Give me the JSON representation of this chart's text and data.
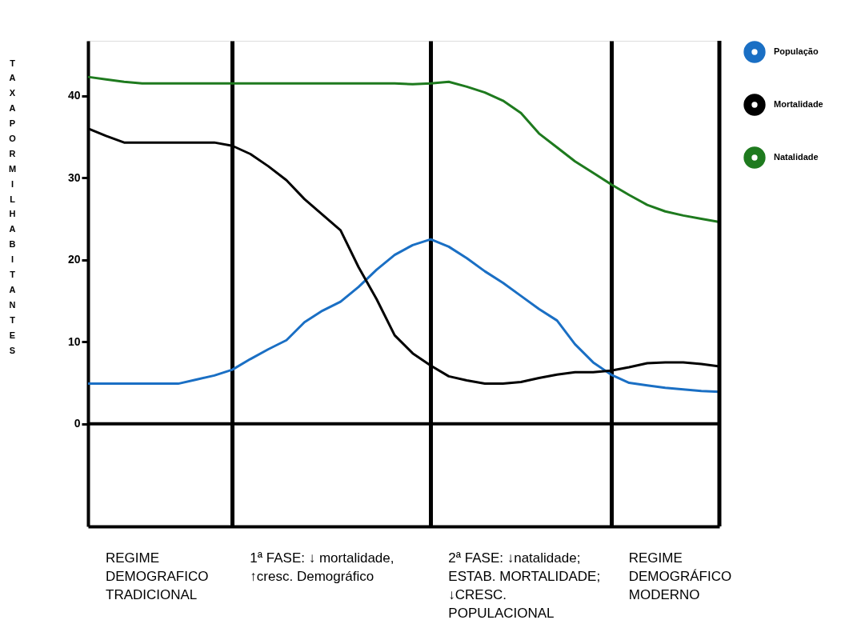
{
  "chart_data": {
    "type": "line",
    "ylabel": "TAXA POR MIL HABITANTES",
    "categories": [
      null,
      null,
      null,
      null,
      null,
      null,
      null,
      null,
      null,
      null,
      null,
      null,
      null,
      null,
      null,
      null,
      null,
      null,
      null,
      null,
      null,
      null,
      null,
      null,
      null,
      null,
      null,
      null,
      null,
      null,
      null,
      null,
      null,
      null,
      null,
      null
    ],
    "ylim": [
      -12.5,
      46.7
    ],
    "yticks": [
      0,
      10,
      20,
      30,
      40
    ],
    "tick_labels": "y",
    "grid": "x",
    "legend": "top right",
    "marker": "none",
    "line_style": "solid",
    "series": [
      {
        "name": "População",
        "color": "#1a6fc4",
        "values": [
          4.9,
          4.9,
          4.9,
          4.9,
          4.9,
          4.9,
          5.4,
          5.9,
          6.6,
          7.9,
          9.1,
          10.2,
          12.4,
          13.8,
          14.9,
          16.7,
          18.8,
          20.6,
          21.8,
          22.5,
          21.6,
          20.2,
          18.6,
          17.2,
          15.6,
          14.0,
          12.6,
          9.7,
          7.5,
          6.0,
          5.0,
          4.7,
          4.4,
          4.2,
          4.0,
          3.9
        ]
      },
      {
        "name": "Mortalidade",
        "color": "#000000",
        "values": [
          36.0,
          35.1,
          34.3,
          34.3,
          34.3,
          34.3,
          34.3,
          34.3,
          33.9,
          32.9,
          31.4,
          29.7,
          27.4,
          25.5,
          23.6,
          19.1,
          15.2,
          10.8,
          8.6,
          7.1,
          5.8,
          5.3,
          4.9,
          4.9,
          5.1,
          5.6,
          6.0,
          6.3,
          6.3,
          6.5,
          6.9,
          7.4,
          7.5,
          7.5,
          7.3,
          7.0
        ]
      },
      {
        "name": "Natalidade",
        "color": "#1e7a1e",
        "values": [
          42.3,
          42.0,
          41.7,
          41.5,
          41.5,
          41.5,
          41.5,
          41.5,
          41.5,
          41.5,
          41.5,
          41.5,
          41.5,
          41.5,
          41.5,
          41.5,
          41.5,
          41.5,
          41.4,
          41.5,
          41.7,
          41.1,
          40.4,
          39.4,
          37.9,
          35.4,
          33.7,
          32.0,
          30.6,
          29.2,
          27.9,
          26.7,
          25.9,
          25.4,
          25.0,
          24.6
        ]
      }
    ],
    "ref_lines": [
      {
        "axis": "y",
        "value": 0,
        "color": "#000000"
      }
    ],
    "annotations": [
      "REGIME\nDEMOGRAFICO\nTRADICIONAL",
      "1ª FASE: ↓ mortalidade,\n↑cresc. Demográfico",
      "2ª FASE: ↓natalidade;\nESTAB. MORTALIDADE;\n↓CRESC.\nPOPULACIONAL",
      "REGIME\nDEMOGRÁFICO\nMODERNO"
    ]
  }
}
